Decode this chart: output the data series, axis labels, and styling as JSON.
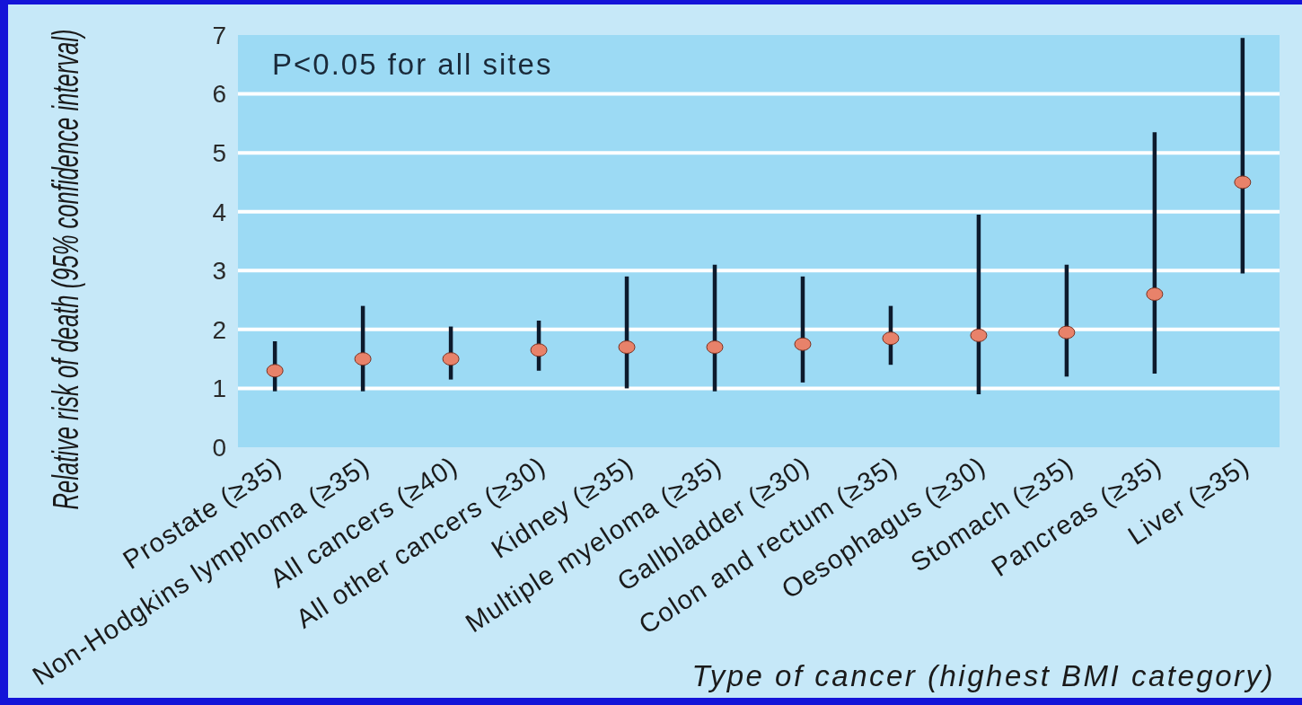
{
  "chart_data": {
    "type": "scatter",
    "categories": [
      "Prostate (≥35)",
      "Non-Hodgkins lymphoma (≥35)",
      "All cancers (≥40)",
      "All other cancers (≥30)",
      "Kidney (≥35)",
      "Multiple myeloma (≥35)",
      "Gallbladder (≥30)",
      "Colon and rectum (≥35)",
      "Oesophagus (≥30)",
      "Stomach (≥35)",
      "Pancreas (≥35)",
      "Liver (≥35)"
    ],
    "values": [
      1.3,
      1.5,
      1.5,
      1.65,
      1.7,
      1.7,
      1.75,
      1.85,
      1.9,
      1.95,
      2.6,
      4.5
    ],
    "errors": [
      [
        0.95,
        1.8
      ],
      [
        0.95,
        2.4
      ],
      [
        1.15,
        2.05
      ],
      [
        1.3,
        2.15
      ],
      [
        1.0,
        2.9
      ],
      [
        0.95,
        3.1
      ],
      [
        1.1,
        2.9
      ],
      [
        1.4,
        2.4
      ],
      [
        0.9,
        3.95
      ],
      [
        1.2,
        3.1
      ],
      [
        1.25,
        5.35
      ],
      [
        2.95,
        6.95
      ]
    ],
    "color": "#e8826a",
    "marker": "circle",
    "ylim": [
      0,
      7
    ],
    "yticks": [
      0,
      1,
      2,
      3,
      4,
      5,
      6,
      7
    ],
    "grid": "y",
    "ylabel": "Relative risk of death (95% confidence interval)",
    "xlabel": "Type of cancer (highest BMI category)",
    "annotations": [
      "P<0.05 for all sites"
    ]
  }
}
